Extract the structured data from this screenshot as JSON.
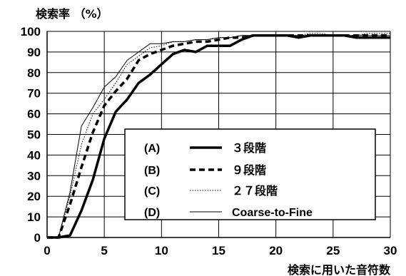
{
  "chart_data": {
    "type": "line",
    "ylabel": "検索率 （%）",
    "xlabel": "検索に用いた音符数",
    "xlim": [
      0,
      30
    ],
    "ylim": [
      0,
      100
    ],
    "xticks": [
      0,
      5,
      10,
      15,
      20,
      25,
      30
    ],
    "yticks": [
      0,
      10,
      20,
      30,
      40,
      50,
      60,
      70,
      80,
      90,
      100
    ],
    "grid": true,
    "legend_position": "lower-right",
    "series": [
      {
        "name": "３段階",
        "legend_key": "(A)",
        "style": "thick-solid",
        "x": [
          0,
          1,
          2,
          3,
          4,
          5,
          6,
          7,
          8,
          9,
          10,
          11,
          12,
          13,
          14,
          15,
          16,
          17,
          18,
          19,
          20,
          21,
          22,
          23,
          24,
          25,
          26,
          27,
          28,
          29,
          30
        ],
        "y": [
          0,
          0,
          1,
          13,
          28,
          48,
          61,
          67,
          75,
          79,
          84,
          89,
          91,
          90,
          93,
          93,
          93,
          96,
          98,
          98,
          98,
          98,
          97,
          98,
          98,
          98,
          98,
          97,
          97,
          97,
          97
        ]
      },
      {
        "name": "９段階",
        "legend_key": "(B)",
        "style": "thick-dashed",
        "x": [
          0,
          1,
          2,
          3,
          4,
          5,
          6,
          7,
          8,
          9,
          10,
          11,
          12,
          13,
          14,
          15,
          16,
          17,
          18,
          19,
          20,
          21,
          22,
          23,
          24,
          25,
          26,
          27,
          28,
          29,
          30
        ],
        "y": [
          0,
          0,
          16,
          34,
          51,
          64,
          71,
          77,
          86,
          89,
          91,
          93,
          94,
          95,
          95,
          96,
          97,
          97,
          98,
          98,
          98,
          98,
          98,
          98,
          98,
          98,
          98,
          98,
          98,
          98,
          98
        ]
      },
      {
        "name": "２７段階",
        "legend_key": "(C)",
        "style": "dotted",
        "x": [
          0,
          1,
          2,
          3,
          4,
          5,
          6,
          7,
          8,
          9,
          10,
          11,
          12,
          13,
          14,
          15,
          16,
          17,
          18,
          19,
          20,
          21,
          22,
          23,
          24,
          25,
          26,
          27,
          28,
          29,
          30
        ],
        "y": [
          0,
          0,
          20,
          45,
          60,
          67,
          75,
          84,
          88,
          92,
          93,
          95,
          95,
          96,
          96,
          97,
          97,
          98,
          98,
          98,
          98,
          98,
          98,
          99,
          99,
          98,
          98,
          98,
          99,
          99,
          99
        ]
      },
      {
        "name": "Coarse-to-Fine",
        "legend_key": "(D)",
        "style": "thin-solid",
        "x": [
          0,
          1,
          2,
          3,
          4,
          5,
          6,
          7,
          8,
          9,
          10,
          11,
          12,
          13,
          14,
          15,
          16,
          17,
          18,
          19,
          20,
          21,
          22,
          23,
          24,
          25,
          26,
          27,
          28,
          29,
          30
        ],
        "y": [
          0,
          0,
          22,
          54,
          63,
          73,
          78,
          86,
          90,
          94,
          94,
          95,
          95,
          96,
          96,
          97,
          97,
          98,
          98,
          98,
          98,
          98,
          98,
          98,
          98,
          98,
          98,
          98,
          98,
          98,
          98
        ]
      }
    ]
  }
}
